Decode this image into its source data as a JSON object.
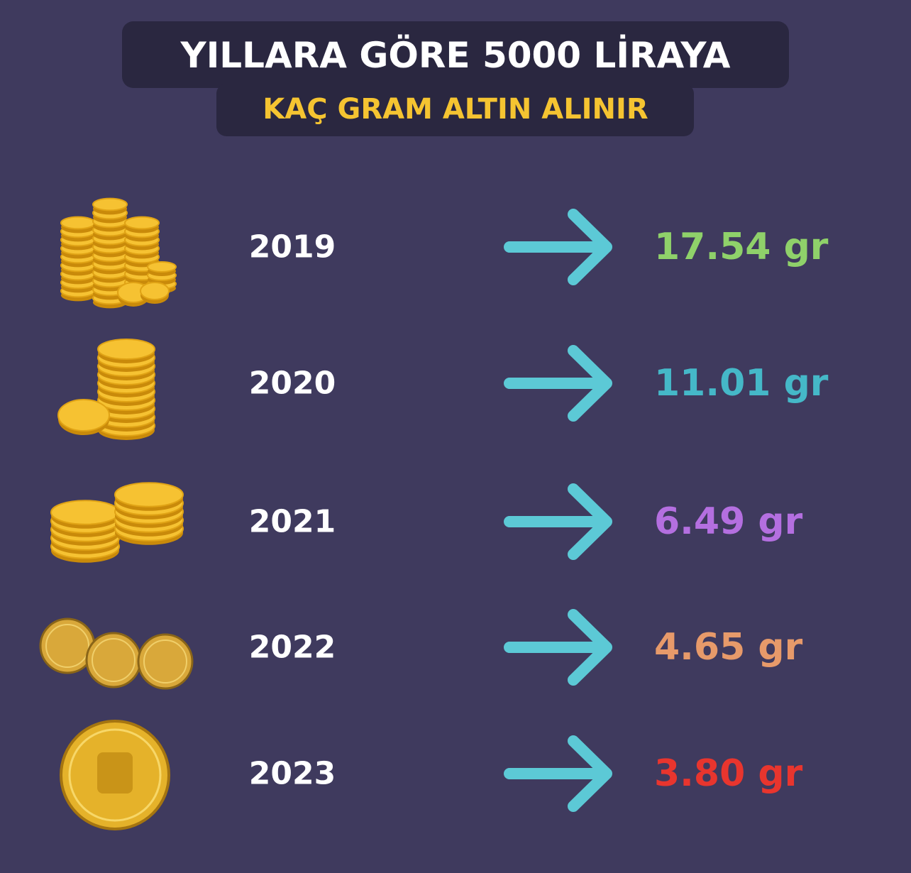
{
  "header": {
    "title": "YILLARA GÖRE 5000 LİRAYA",
    "subtitle": "KAÇ GRAM ALTIN ALINIR",
    "title_color": "#ffffff",
    "subtitle_color": "#f5c431"
  },
  "rows": [
    {
      "year": "2019",
      "amount": "17.54 gr",
      "color": "#8fd16a"
    },
    {
      "year": "2020",
      "amount": "11.01 gr",
      "color": "#45b8c8"
    },
    {
      "year": "2021",
      "amount": "6.49 gr",
      "color": "#b46fe0"
    },
    {
      "year": "2022",
      "amount": "4.65 gr",
      "color": "#e79a6a"
    },
    {
      "year": "2023",
      "amount": "3.80 gr",
      "color": "#e8352e"
    }
  ]
}
